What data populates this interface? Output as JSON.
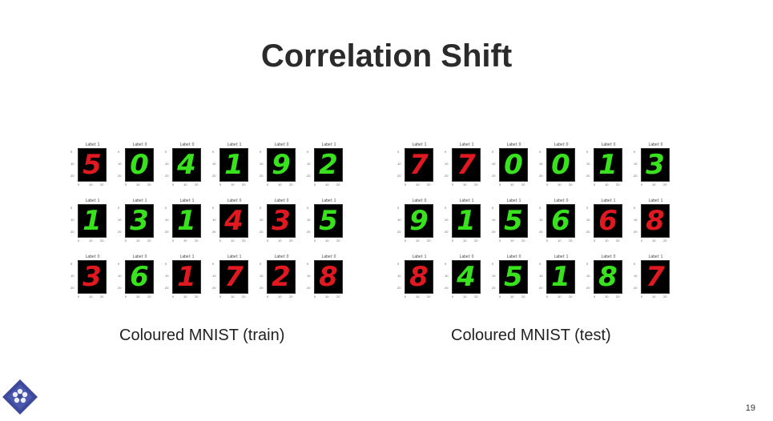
{
  "slide": {
    "title": "Correlation Shift",
    "page_number": "19"
  },
  "colors": {
    "red": "#e0181f",
    "green": "#38e21d",
    "background": "#ffffff",
    "digit_background": "#000000"
  },
  "tick_labels": {
    "y": [
      "0",
      "10",
      "20"
    ],
    "x": [
      "0",
      "10",
      "20"
    ]
  },
  "train": {
    "caption": "Coloured MNIST (train)",
    "cells": [
      {
        "label": "Label: 1",
        "digit": "5",
        "color": "red"
      },
      {
        "label": "Label: 0",
        "digit": "0",
        "color": "green"
      },
      {
        "label": "Label: 0",
        "digit": "4",
        "color": "green"
      },
      {
        "label": "Label: 1",
        "digit": "1",
        "color": "green"
      },
      {
        "label": "Label: 0",
        "digit": "9",
        "color": "green"
      },
      {
        "label": "Label: 1",
        "digit": "2",
        "color": "green"
      },
      {
        "label": "Label: 1",
        "digit": "1",
        "color": "green"
      },
      {
        "label": "Label: 1",
        "digit": "3",
        "color": "green"
      },
      {
        "label": "Label: 1",
        "digit": "1",
        "color": "green"
      },
      {
        "label": "Label: 0",
        "digit": "4",
        "color": "red"
      },
      {
        "label": "Label: 0",
        "digit": "3",
        "color": "red"
      },
      {
        "label": "Label: 1",
        "digit": "5",
        "color": "green"
      },
      {
        "label": "Label: 0",
        "digit": "3",
        "color": "red"
      },
      {
        "label": "Label: 0",
        "digit": "6",
        "color": "green"
      },
      {
        "label": "Label: 1",
        "digit": "1",
        "color": "red"
      },
      {
        "label": "Label: 1",
        "digit": "7",
        "color": "red"
      },
      {
        "label": "Label: 0",
        "digit": "2",
        "color": "red"
      },
      {
        "label": "Label: 0",
        "digit": "8",
        "color": "red"
      }
    ]
  },
  "test": {
    "caption": "Coloured MNIST (test)",
    "cells": [
      {
        "label": "Label: 1",
        "digit": "7",
        "color": "red"
      },
      {
        "label": "Label: 1",
        "digit": "7",
        "color": "red"
      },
      {
        "label": "Label: 0",
        "digit": "0",
        "color": "green"
      },
      {
        "label": "Label: 0",
        "digit": "0",
        "color": "green"
      },
      {
        "label": "Label: 0",
        "digit": "1",
        "color": "green"
      },
      {
        "label": "Label: 0",
        "digit": "3",
        "color": "green"
      },
      {
        "label": "Label: 0",
        "digit": "9",
        "color": "green"
      },
      {
        "label": "Label: 1",
        "digit": "1",
        "color": "green"
      },
      {
        "label": "Label: 1",
        "digit": "5",
        "color": "green"
      },
      {
        "label": "Label: 0",
        "digit": "6",
        "color": "green"
      },
      {
        "label": "Label: 1",
        "digit": "6",
        "color": "red"
      },
      {
        "label": "Label: 1",
        "digit": "8",
        "color": "red"
      },
      {
        "label": "Label: 1",
        "digit": "8",
        "color": "red"
      },
      {
        "label": "Label: 0",
        "digit": "4",
        "color": "green"
      },
      {
        "label": "Label: 0",
        "digit": "5",
        "color": "green"
      },
      {
        "label": "Label: 1",
        "digit": "1",
        "color": "green"
      },
      {
        "label": "Label: 0",
        "digit": "8",
        "color": "green"
      },
      {
        "label": "Label: 1",
        "digit": "7",
        "color": "red"
      }
    ]
  }
}
